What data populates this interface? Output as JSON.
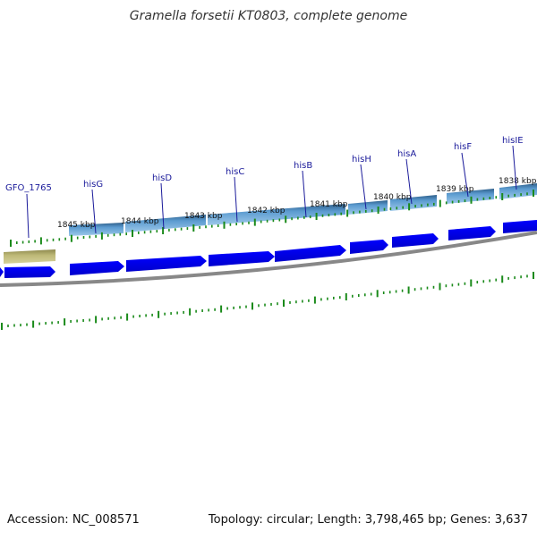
{
  "map": {
    "title": "Gramella forsetii KT0803, complete genome",
    "accession": "Accession: NC_008571",
    "summary": "Topology: circular; Length: 3,798,465 bp; Genes: 3,637"
  },
  "ticks": [
    {
      "label": "1845 kbp"
    },
    {
      "label": "1844 kbp"
    },
    {
      "label": "1843 kbp"
    },
    {
      "label": "1842 kbp"
    },
    {
      "label": "1841 kbp"
    },
    {
      "label": "1840 kbp"
    },
    {
      "label": "1839 kbp"
    },
    {
      "label": "1838 kbp"
    }
  ],
  "genes": [
    {
      "name": "GFO_1765"
    },
    {
      "name": "hisG"
    },
    {
      "name": "hisD"
    },
    {
      "name": "hisC"
    },
    {
      "name": "hisB"
    },
    {
      "name": "hisH"
    },
    {
      "name": "hisA"
    },
    {
      "name": "hisF"
    },
    {
      "name": "hisIE"
    }
  ],
  "colors": {
    "cds_arrow": "#0000ff",
    "gene_feature": "#4f8fc8",
    "other_feature": "#b5b06e",
    "backbone": "#888888",
    "ticks": "#1a8a1a",
    "gene_label": "#1a1a9a"
  }
}
